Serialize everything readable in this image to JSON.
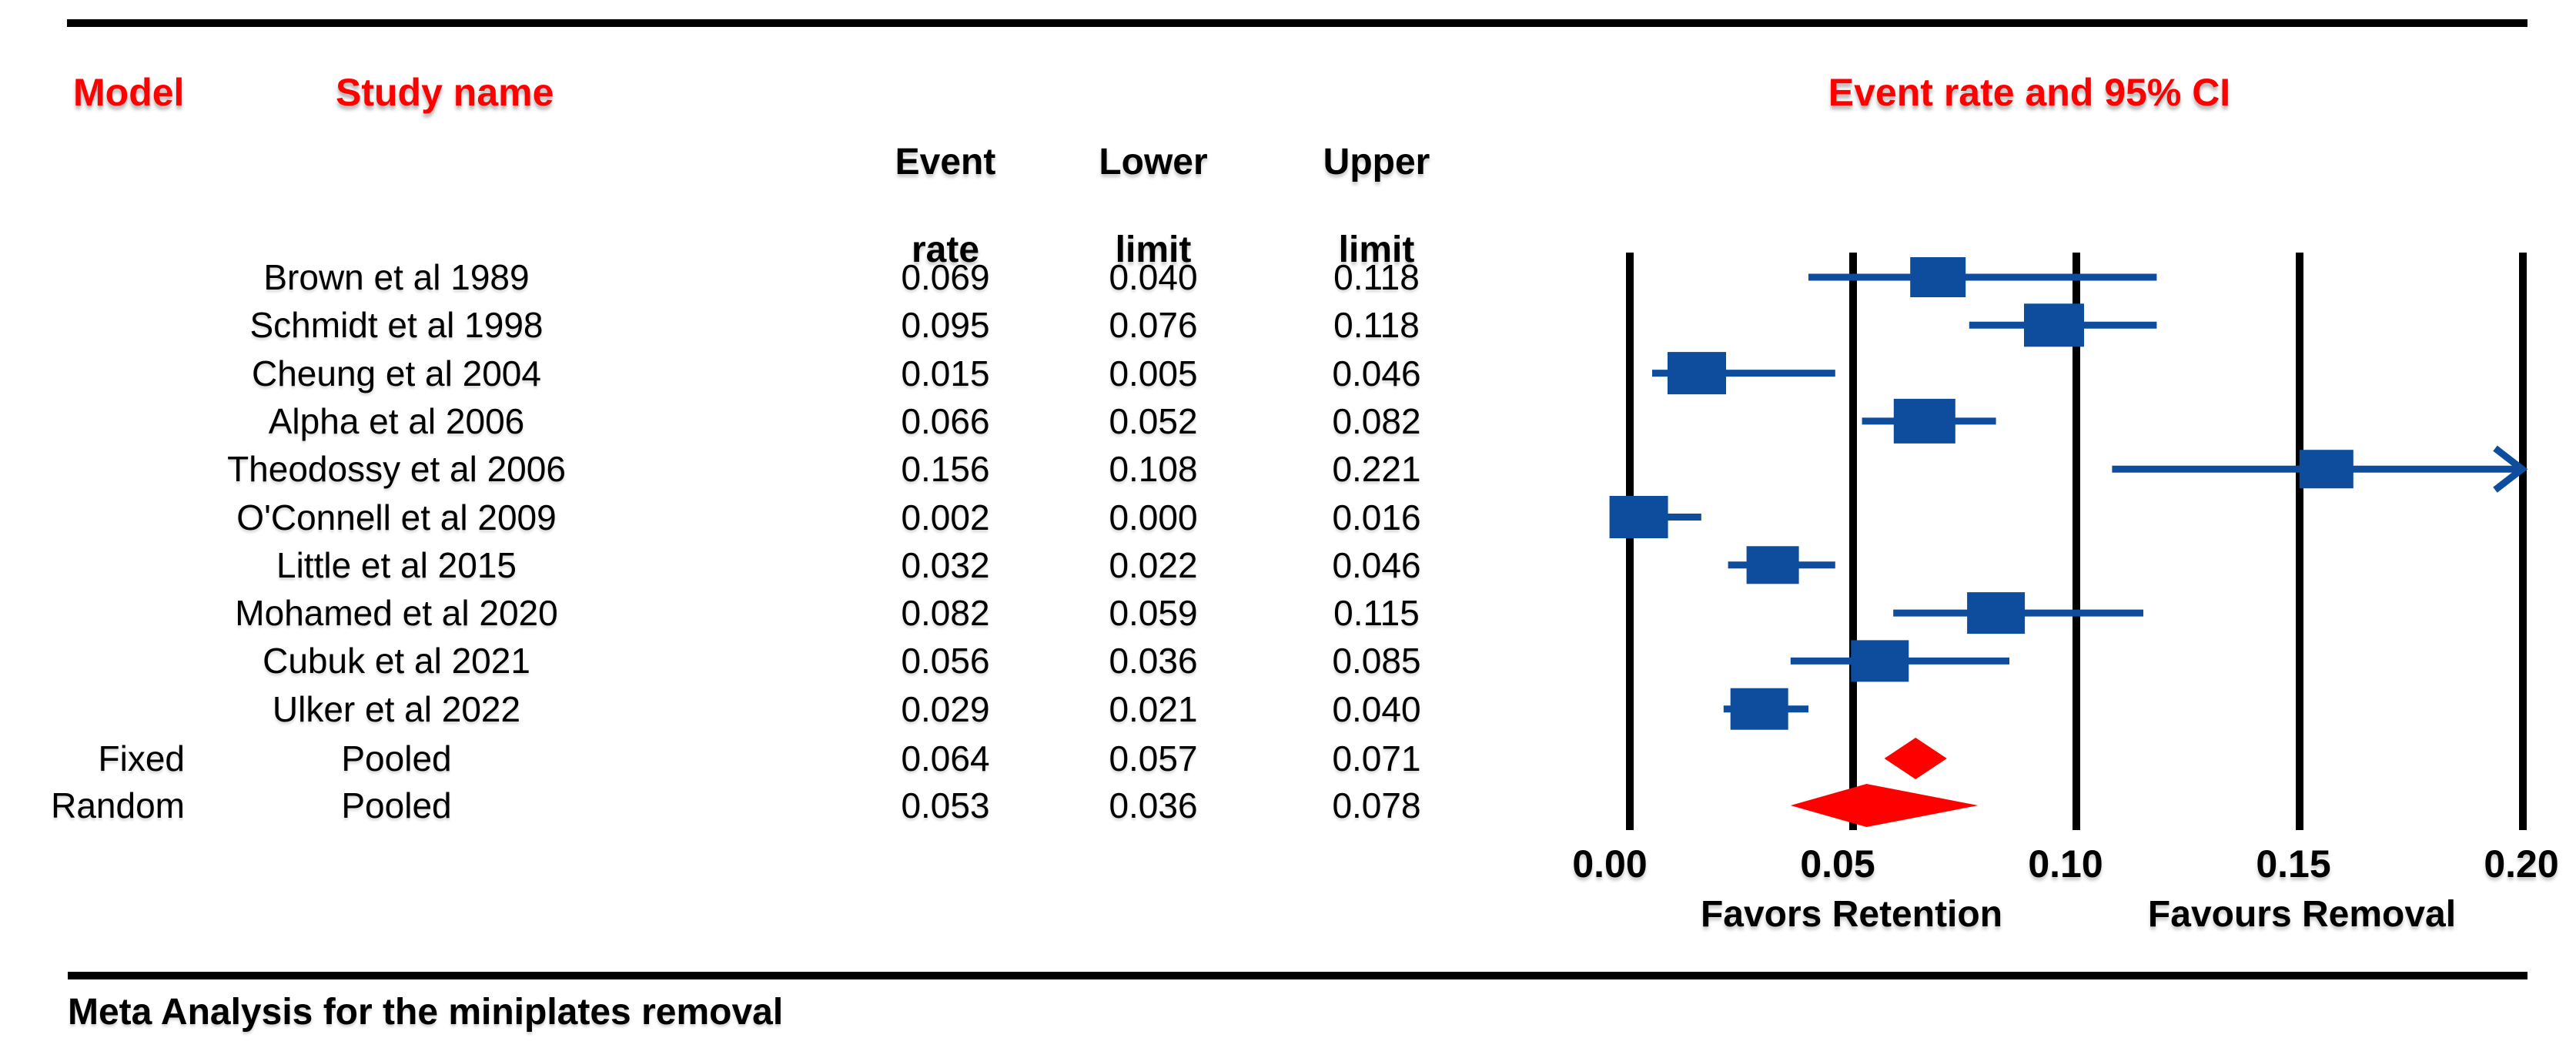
{
  "page": {
    "left_header": {
      "model": "Model",
      "study": "Study name"
    },
    "right_header": "Event rate and 95% CI",
    "columns": [
      [
        "Event",
        "rate"
      ],
      [
        "Lower",
        "limit"
      ],
      [
        "Upper",
        "limit"
      ]
    ],
    "caption": "Meta Analysis for the miniplates removal"
  },
  "chart_data": {
    "type": "forest",
    "title": "Event rate and 95% CI",
    "x_axis": {
      "min": 0.0,
      "max": 0.2,
      "tick_labels": [
        "0.00",
        "0.05",
        "0.10",
        "0.15",
        "0.20"
      ],
      "left_note": "Favors Retention",
      "right_note": "Favours Removal"
    },
    "studies": [
      {
        "name": "Brown et al 1989",
        "event_rate": "0.069",
        "lower": "0.040",
        "upper": "0.118",
        "marker": 72
      },
      {
        "name": "Schmidt et al 1998",
        "event_rate": "0.095",
        "lower": "0.076",
        "upper": "0.118",
        "marker": 78
      },
      {
        "name": "Cheung et al 2004",
        "event_rate": "0.015",
        "lower": "0.005",
        "upper": "0.046",
        "marker": 76
      },
      {
        "name": "Alpha et al 2006",
        "event_rate": "0.066",
        "lower": "0.052",
        "upper": "0.082",
        "marker": 80
      },
      {
        "name": "Theodossy et al 2006",
        "event_rate": "0.156",
        "lower": "0.108",
        "upper": "0.221",
        "marker": 70
      },
      {
        "name": "O'Connell et al 2009",
        "event_rate": "0.002",
        "lower": "0.000",
        "upper": "0.016",
        "marker": 76
      },
      {
        "name": "Little et al 2015",
        "event_rate": "0.032",
        "lower": "0.022",
        "upper": "0.046",
        "marker": 68
      },
      {
        "name": "Mohamed et al 2020",
        "event_rate": "0.082",
        "lower": "0.059",
        "upper": "0.115",
        "marker": 75
      },
      {
        "name": "Cubuk et al 2021",
        "event_rate": "0.056",
        "lower": "0.036",
        "upper": "0.085",
        "marker": 75
      },
      {
        "name": "Ulker et al 2022",
        "event_rate": "0.029",
        "lower": "0.021",
        "upper": "0.040",
        "marker": 75
      }
    ],
    "pooled": [
      {
        "model": "Fixed",
        "name": "Pooled",
        "event_rate": "0.064",
        "lower": "0.057",
        "upper": "0.071"
      },
      {
        "model": "Random",
        "name": "Pooled",
        "event_rate": "0.053",
        "lower": "0.036",
        "upper": "0.078"
      }
    ],
    "colors": {
      "marker_blue": "#0e4d9d",
      "pooled_red": "#ff0000",
      "grid_black": "#000000"
    }
  }
}
